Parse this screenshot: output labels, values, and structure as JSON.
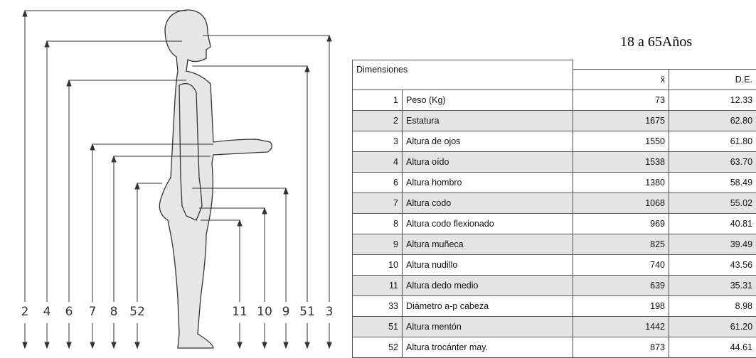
{
  "figure": {
    "labels": [
      "2",
      "4",
      "6",
      "7",
      "8",
      "52",
      "11",
      "10",
      "9",
      "51",
      "3"
    ]
  },
  "header": {
    "title": "18 a 65Años"
  },
  "table": {
    "columns": [
      "Dimensiones",
      "x̄",
      "D.E."
    ],
    "rows": [
      [
        "1",
        "Peso (Kg)",
        "73",
        "12.33"
      ],
      [
        "2",
        "Estatura",
        "1675",
        "62.80"
      ],
      [
        "3",
        "Altura de ojos",
        "1550",
        "61.80"
      ],
      [
        "4",
        "Altura oído",
        "1538",
        "63.70"
      ],
      [
        "6",
        "Altura hombro",
        "1380",
        "58.49"
      ],
      [
        "7",
        "Altura codo",
        "1068",
        "55.02"
      ],
      [
        "8",
        "Altura codo flexionado",
        "969",
        "40.81"
      ],
      [
        "9",
        "Altura muñeca",
        "825",
        "39.49"
      ],
      [
        "10",
        "Altura nudillo",
        "740",
        "43.56"
      ],
      [
        "11",
        "Altura dedo medio",
        "639",
        "35.31"
      ],
      [
        "33",
        "Diámetro a-p cabeza",
        "198",
        "8.98"
      ],
      [
        "51",
        "Altura mentón",
        "1442",
        "61.20"
      ],
      [
        "52",
        "Altura trocánter may.",
        "873",
        "44.61"
      ]
    ]
  }
}
